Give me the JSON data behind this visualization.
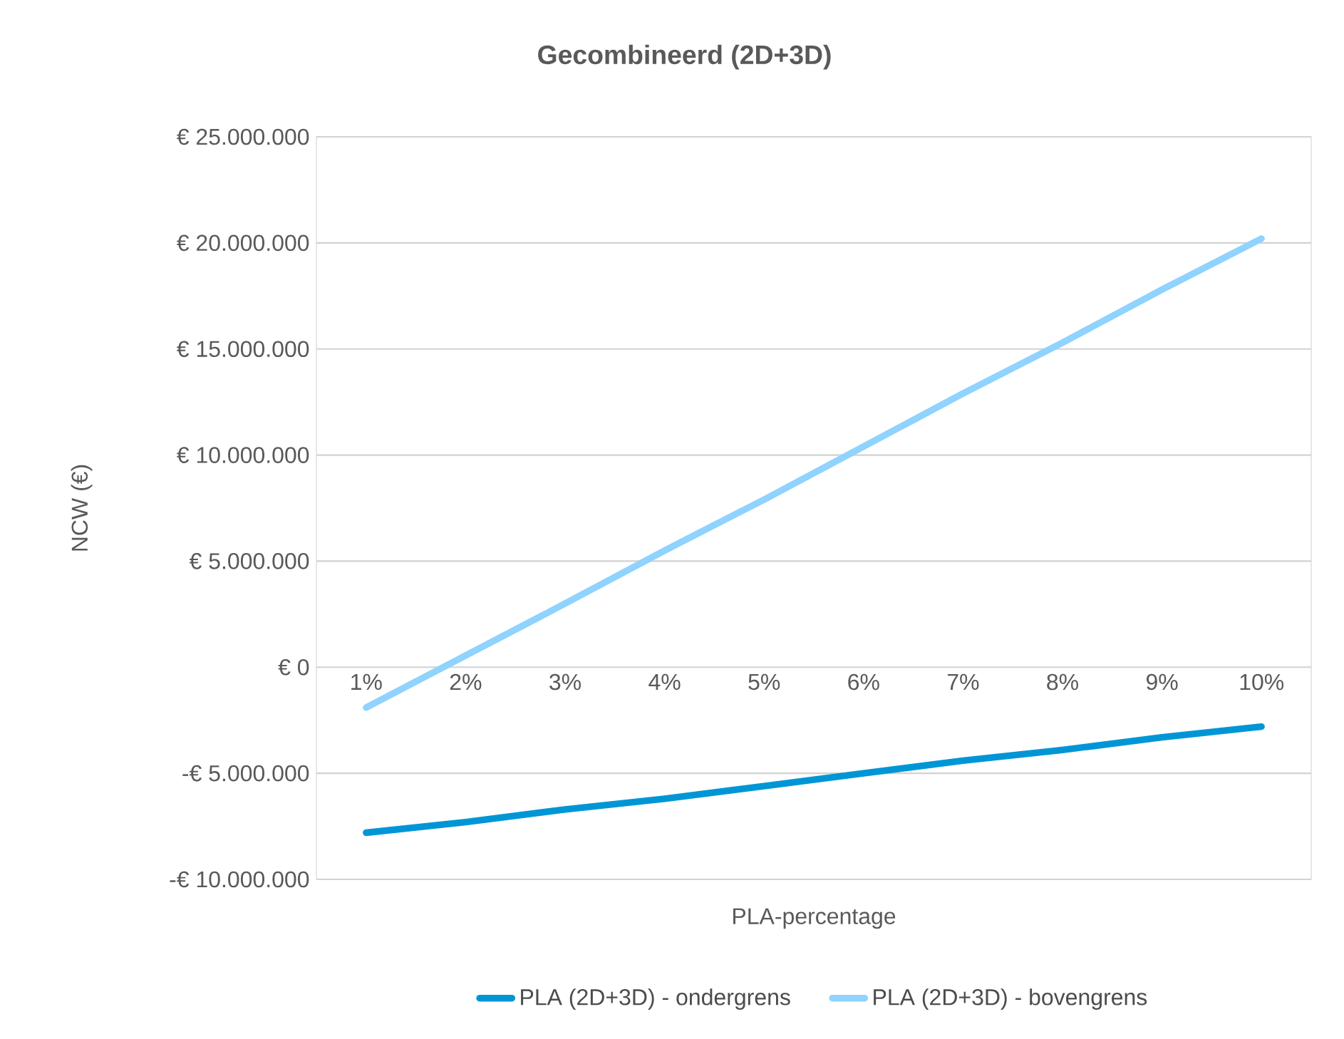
{
  "chart_data": {
    "type": "line",
    "title": "Gecombineerd (2D+3D)",
    "xlabel": "PLA-percentage",
    "ylabel": "NCW (€)",
    "categories": [
      "1%",
      "2%",
      "3%",
      "4%",
      "5%",
      "6%",
      "7%",
      "8%",
      "9%",
      "10%"
    ],
    "series": [
      {
        "name": "PLA (2D+3D) - ondergrens",
        "color": "#0096d6",
        "values": [
          -7800000,
          -7300000,
          -6700000,
          -6200000,
          -5600000,
          -5000000,
          -4400000,
          -3900000,
          -3300000,
          -2800000
        ]
      },
      {
        "name": "PLA (2D+3D) - bovengrens",
        "color": "#8fd3fe",
        "values": [
          -1900000,
          550000,
          3000000,
          5500000,
          7900000,
          10400000,
          12900000,
          15300000,
          17800000,
          20200000
        ]
      }
    ],
    "ylim": [
      -10000000,
      25000000
    ],
    "yticks": [
      {
        "value": -10000000,
        "label": "-€ 10.000.000"
      },
      {
        "value": -5000000,
        "label": "-€ 5.000.000"
      },
      {
        "value": 0,
        "label": "€ 0"
      },
      {
        "value": 5000000,
        "label": "€ 5.000.000"
      },
      {
        "value": 10000000,
        "label": "€ 10.000.000"
      },
      {
        "value": 15000000,
        "label": "€ 15.000.000"
      },
      {
        "value": 20000000,
        "label": "€ 20.000.000"
      },
      {
        "value": 25000000,
        "label": "€ 25.000.000"
      }
    ],
    "grid": "y",
    "legend": "bottom"
  }
}
